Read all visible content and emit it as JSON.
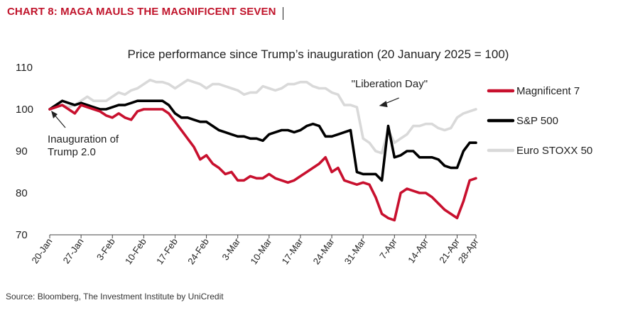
{
  "heading": "CHART 8: MAGA MAULS THE MAGNIFICENT SEVEN",
  "source": "Source: Bloomberg, The Investment Institute by UniCredit",
  "colors": {
    "magnificent7": "#c8102e",
    "sp500": "#000000",
    "eurostoxx": "#d9d9d9",
    "heading": "#c0142b"
  },
  "chart_data": {
    "type": "line",
    "title": "Price performance since Trump’s inauguration (20 January 2025 = 100)",
    "xlabel": "",
    "ylabel": "",
    "ylim": [
      70,
      110
    ],
    "yticks": [
      70,
      80,
      90,
      100,
      110
    ],
    "grid": false,
    "legend_position": "right",
    "x": [
      0,
      1,
      2,
      3,
      4,
      5,
      6,
      7,
      8,
      9,
      10,
      11,
      12,
      13,
      14,
      15,
      16,
      17,
      18,
      19,
      20,
      21,
      22,
      23,
      24,
      25,
      26,
      27,
      28,
      29,
      30,
      31,
      32,
      33,
      34,
      35,
      36,
      37,
      38,
      39,
      40,
      41,
      42,
      43,
      44,
      45,
      46,
      47,
      48,
      49,
      50,
      51,
      52,
      53,
      54,
      55,
      56,
      57,
      58,
      59,
      60,
      61,
      62,
      63,
      64,
      65,
      66,
      67,
      68
    ],
    "x_ticks": [
      0,
      5,
      10,
      15,
      20,
      25,
      30,
      35,
      40,
      45,
      50,
      55,
      60,
      65,
      68
    ],
    "x_tick_labels": [
      "20-Jan",
      "27-Jan",
      "3-Feb",
      "10-Feb",
      "17-Feb",
      "24-Feb",
      "3-Mar",
      "10-Mar",
      "17-Mar",
      "24-Mar",
      "31-Mar",
      "7-Apr",
      "14-Apr",
      "21-Apr",
      "28-Apr"
    ],
    "series": [
      {
        "name": "Magnificent 7",
        "values": [
          100,
          100.5,
          101,
          100,
          99,
          101,
          100.5,
          100,
          99.5,
          98.5,
          98,
          99,
          98,
          97.5,
          99.5,
          100,
          100,
          100,
          100,
          99,
          97,
          95,
          93,
          91,
          88,
          89,
          87,
          86,
          84.5,
          85,
          83,
          83,
          84,
          83.5,
          83.5,
          84.5,
          83.5,
          83,
          82.5,
          83,
          84,
          85,
          86,
          87,
          88.5,
          85,
          86,
          83,
          82.5,
          82,
          82.5,
          82,
          79,
          75,
          74,
          73.5,
          80,
          81,
          80.5,
          80,
          80,
          79,
          77.5,
          76,
          75,
          74,
          78,
          83,
          83.5
        ]
      },
      {
        "name": "S&P 500",
        "values": [
          100,
          101,
          102,
          101.5,
          101,
          101.5,
          101,
          100.5,
          100,
          100,
          100.5,
          101,
          101,
          101.5,
          102,
          102,
          102,
          102,
          102,
          101,
          99,
          98,
          98,
          97.5,
          97,
          97,
          96,
          95,
          94.5,
          94,
          93.5,
          93.5,
          93,
          93,
          92.5,
          94,
          94.5,
          95,
          95,
          94.5,
          95,
          96,
          96.5,
          96,
          93.5,
          93.5,
          94,
          94.5,
          95,
          85,
          84.5,
          84.5,
          84.5,
          83,
          96,
          88.5,
          89,
          90,
          90,
          88.5,
          88.5,
          88.5,
          88,
          86.5,
          86,
          86,
          90,
          92,
          92
        ]
      },
      {
        "name": "Euro STOXX 50",
        "values": [
          100,
          100.5,
          101,
          100.5,
          101,
          102,
          103,
          102,
          102,
          102,
          103,
          104,
          103.5,
          104.5,
          105,
          106,
          107,
          106.5,
          106.5,
          106,
          105,
          106,
          107,
          106.5,
          106,
          105,
          106,
          106,
          105.5,
          105,
          104.5,
          103.5,
          104,
          104,
          105.5,
          105,
          104.5,
          105,
          106,
          106,
          106.5,
          106.5,
          105.5,
          105,
          105,
          104,
          103.5,
          101,
          101,
          100.5,
          93,
          92,
          90,
          89.5,
          95,
          92,
          93,
          94,
          96,
          96,
          96.5,
          96.5,
          95.5,
          95,
          95.5,
          98,
          99,
          99.5,
          100
        ]
      }
    ],
    "annotations": [
      {
        "text": "Inauguration of Trump 2.0",
        "lines": [
          "Inauguration of",
          "Trump 2.0"
        ],
        "x": 0,
        "y": 100
      },
      {
        "text": "\"Liberation Day\"",
        "x": 53,
        "y": 101
      }
    ]
  }
}
